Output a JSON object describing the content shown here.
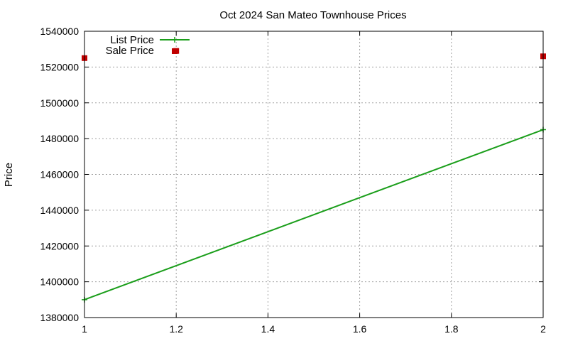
{
  "chart_data": {
    "type": "line",
    "title": "Oct 2024 San Mateo Townhouse Prices",
    "xlabel": "",
    "ylabel": "Price",
    "xlim": [
      1,
      2
    ],
    "ylim": [
      1380000,
      1540000
    ],
    "xticks": [
      "1",
      "1.2",
      "1.4",
      "1.6",
      "1.8",
      "2"
    ],
    "yticks": [
      "1380000",
      "1400000",
      "1420000",
      "1440000",
      "1460000",
      "1480000",
      "1500000",
      "1520000",
      "1540000"
    ],
    "grid": true,
    "legend_position": "top-left",
    "series": [
      {
        "name": "List Price",
        "style": "line-points",
        "color": "#1a9e1a",
        "x": [
          1,
          2
        ],
        "y": [
          1390000,
          1485000
        ]
      },
      {
        "name": "Sale Price",
        "style": "points",
        "color": "#c00000",
        "x": [
          1,
          1.2,
          2
        ],
        "y": [
          1525000,
          1529000,
          1526000
        ]
      }
    ]
  }
}
